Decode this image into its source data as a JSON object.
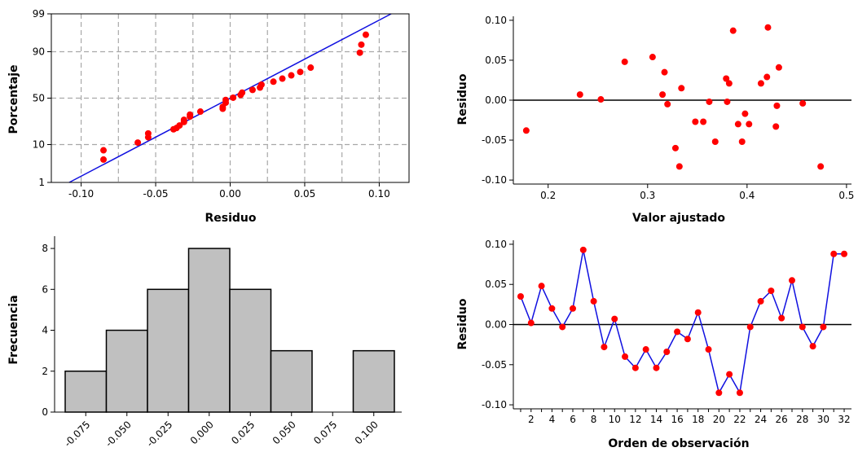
{
  "chart_data": [
    {
      "type": "scatter",
      "name": "probability-plot",
      "xlabel": "Residuo",
      "ylabel": "Porcentaje",
      "xlim": [
        -0.12,
        0.12
      ],
      "xticks": [
        -0.1,
        -0.05,
        0.0,
        0.05,
        0.1
      ],
      "xtick_labels": [
        "-0.10",
        "-0.05",
        "0.00",
        "0.05",
        "0.10"
      ],
      "yticks": [
        1,
        10,
        50,
        90,
        99
      ],
      "ytick_labels": [
        "1",
        "10",
        "50",
        "90",
        "99"
      ],
      "y_scale": "normal-probability",
      "grid": true,
      "fit_line": {
        "x": [
          -0.108,
          0.108
        ],
        "y": [
          1.0,
          99.0
        ]
      },
      "points": [
        {
          "x": -0.085,
          "y": 4.5
        },
        {
          "x": -0.085,
          "y": 7.5
        },
        {
          "x": -0.062,
          "y": 11.0
        },
        {
          "x": -0.055,
          "y": 14.0
        },
        {
          "x": -0.055,
          "y": 16.5
        },
        {
          "x": -0.038,
          "y": 19.5
        },
        {
          "x": -0.036,
          "y": 20.5
        },
        {
          "x": -0.034,
          "y": 22.5
        },
        {
          "x": -0.031,
          "y": 25.5
        },
        {
          "x": -0.031,
          "y": 27.5
        },
        {
          "x": -0.027,
          "y": 30.5
        },
        {
          "x": -0.027,
          "y": 32.5
        },
        {
          "x": -0.02,
          "y": 35.5
        },
        {
          "x": -0.005,
          "y": 38.5
        },
        {
          "x": -0.005,
          "y": 40.5
        },
        {
          "x": -0.003,
          "y": 45.0
        },
        {
          "x": -0.003,
          "y": 48.0
        },
        {
          "x": 0.002,
          "y": 50.5
        },
        {
          "x": 0.007,
          "y": 53.5
        },
        {
          "x": 0.008,
          "y": 56.0
        },
        {
          "x": 0.015,
          "y": 59.0
        },
        {
          "x": 0.02,
          "y": 61.5
        },
        {
          "x": 0.021,
          "y": 64.5
        },
        {
          "x": 0.029,
          "y": 67.5
        },
        {
          "x": 0.035,
          "y": 70.5
        },
        {
          "x": 0.041,
          "y": 73.5
        },
        {
          "x": 0.047,
          "y": 76.5
        },
        {
          "x": 0.054,
          "y": 80.0
        },
        {
          "x": 0.087,
          "y": 89.5
        },
        {
          "x": 0.088,
          "y": 93.0
        },
        {
          "x": 0.091,
          "y": 96.0
        }
      ]
    },
    {
      "type": "scatter",
      "name": "residuals-vs-fits",
      "xlabel": "Valor ajustado",
      "ylabel": "Residuo",
      "xlim": [
        0.165,
        0.505
      ],
      "ylim": [
        -0.105,
        0.105
      ],
      "xticks": [
        0.2,
        0.3,
        0.4,
        0.5
      ],
      "xtick_labels": [
        "0.2",
        "0.3",
        "0.4",
        "0.5"
      ],
      "yticks": [
        -0.1,
        -0.05,
        0.0,
        0.05,
        0.1
      ],
      "ytick_labels": [
        "-0.10",
        "-0.05",
        "0.00",
        "0.05",
        "0.10"
      ],
      "reference_line": 0,
      "points": [
        {
          "x": 0.178,
          "y": -0.038
        },
        {
          "x": 0.232,
          "y": 0.007
        },
        {
          "x": 0.253,
          "y": 0.001
        },
        {
          "x": 0.277,
          "y": 0.048
        },
        {
          "x": 0.305,
          "y": 0.054
        },
        {
          "x": 0.315,
          "y": 0.007
        },
        {
          "x": 0.317,
          "y": 0.035
        },
        {
          "x": 0.32,
          "y": -0.005
        },
        {
          "x": 0.328,
          "y": -0.06
        },
        {
          "x": 0.332,
          "y": -0.083
        },
        {
          "x": 0.334,
          "y": 0.015
        },
        {
          "x": 0.348,
          "y": -0.027
        },
        {
          "x": 0.356,
          "y": -0.027
        },
        {
          "x": 0.362,
          "y": -0.002
        },
        {
          "x": 0.368,
          "y": -0.052
        },
        {
          "x": 0.379,
          "y": 0.027
        },
        {
          "x": 0.38,
          "y": -0.002
        },
        {
          "x": 0.382,
          "y": 0.021
        },
        {
          "x": 0.386,
          "y": 0.087
        },
        {
          "x": 0.391,
          "y": -0.03
        },
        {
          "x": 0.395,
          "y": -0.052
        },
        {
          "x": 0.398,
          "y": -0.017
        },
        {
          "x": 0.402,
          "y": -0.03
        },
        {
          "x": 0.414,
          "y": 0.021
        },
        {
          "x": 0.42,
          "y": 0.029
        },
        {
          "x": 0.421,
          "y": 0.091
        },
        {
          "x": 0.429,
          "y": -0.033
        },
        {
          "x": 0.43,
          "y": -0.007
        },
        {
          "x": 0.432,
          "y": 0.041
        },
        {
          "x": 0.456,
          "y": -0.004
        },
        {
          "x": 0.474,
          "y": -0.083
        }
      ]
    },
    {
      "type": "bar",
      "name": "histogram",
      "xlabel": "",
      "ylabel": "Frecuencia",
      "categories": [
        "-0.075",
        "-0.050",
        "-0.025",
        "0.000",
        "0.025",
        "0.050",
        "0.075",
        "0.100"
      ],
      "values": [
        2,
        4,
        6,
        8,
        6,
        3,
        0,
        3
      ],
      "ylim": [
        0,
        8.6
      ],
      "yticks": [
        0,
        2,
        4,
        6,
        8
      ],
      "ytick_labels": [
        "0",
        "2",
        "4",
        "6",
        "8"
      ]
    },
    {
      "type": "line",
      "name": "residuals-vs-order",
      "xlabel": "Orden de observación",
      "ylabel": "Residuo",
      "xlim": [
        0.3,
        32.7
      ],
      "ylim": [
        -0.105,
        0.105
      ],
      "xticks": [
        2,
        4,
        6,
        8,
        10,
        12,
        14,
        16,
        18,
        20,
        22,
        24,
        26,
        28,
        30,
        32
      ],
      "xtick_labels": [
        "2",
        "4",
        "6",
        "8",
        "10",
        "12",
        "14",
        "16",
        "18",
        "20",
        "22",
        "24",
        "26",
        "28",
        "30",
        "32"
      ],
      "yticks": [
        -0.1,
        -0.05,
        0.0,
        0.05,
        0.1
      ],
      "ytick_labels": [
        "-0.10",
        "-0.05",
        "0.00",
        "0.05",
        "0.10"
      ],
      "reference_line": 0,
      "x": [
        1,
        2,
        3,
        4,
        5,
        6,
        7,
        8,
        9,
        10,
        11,
        12,
        13,
        14,
        15,
        16,
        17,
        18,
        19,
        20,
        21,
        22,
        23,
        24,
        25,
        26,
        27,
        28,
        29,
        30,
        31,
        32
      ],
      "values": [
        0.035,
        0.002,
        0.048,
        0.02,
        -0.003,
        0.02,
        0.093,
        0.029,
        -0.028,
        0.007,
        -0.04,
        -0.054,
        -0.031,
        -0.054,
        -0.034,
        -0.009,
        -0.018,
        0.015,
        -0.031,
        -0.085,
        -0.062,
        -0.085,
        -0.003,
        0.029,
        0.042,
        0.008,
        0.055,
        -0.003,
        -0.027,
        -0.003,
        0.088,
        0.088
      ]
    }
  ]
}
